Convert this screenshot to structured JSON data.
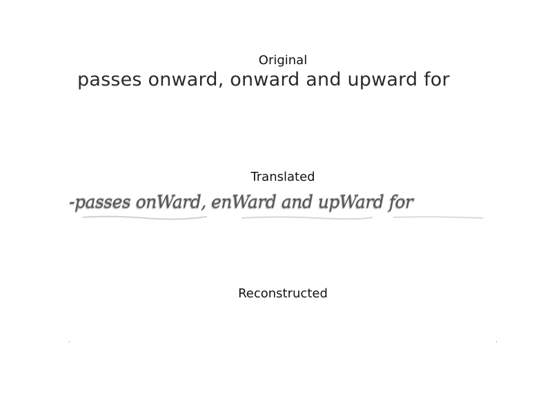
{
  "panels": {
    "original": {
      "title": "Original",
      "text": "passes onward, onward and upward for"
    },
    "translated": {
      "title": "Translated",
      "text": "-passes onWard, enWard and upWard for"
    },
    "reconstructed": {
      "title": "Reconstructed"
    }
  }
}
